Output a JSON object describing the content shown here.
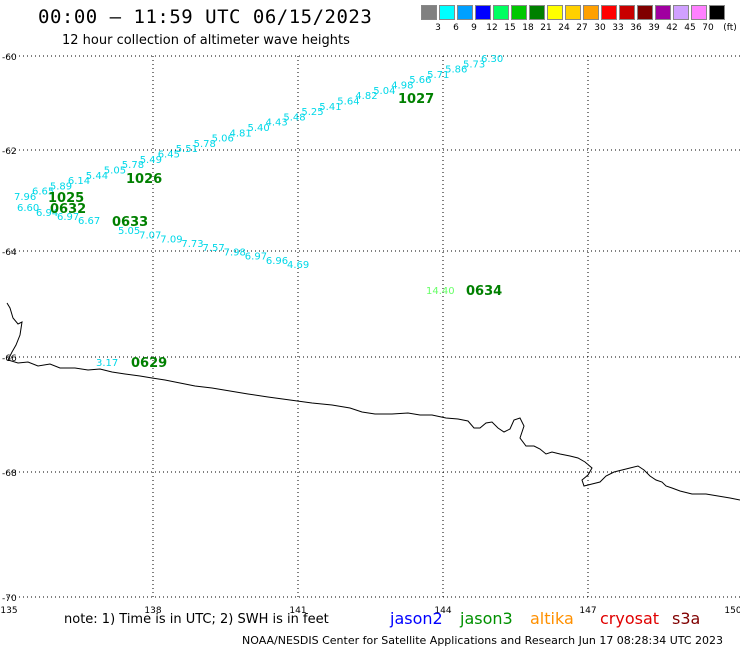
{
  "header": {
    "title": "00:00 – 11:59 UTC 06/15/2023",
    "subtitle": "12 hour collection of altimeter wave heights"
  },
  "legend": {
    "unit": "(ft)",
    "bins": [
      {
        "color": "#808080",
        "label": "3"
      },
      {
        "color": "#00ffff",
        "label": "6"
      },
      {
        "color": "#00a0ff",
        "label": "9"
      },
      {
        "color": "#0000ff",
        "label": "12"
      },
      {
        "color": "#00ff60",
        "label": "15"
      },
      {
        "color": "#00c800",
        "label": "18"
      },
      {
        "color": "#008000",
        "label": "21"
      },
      {
        "color": "#ffff00",
        "label": "24"
      },
      {
        "color": "#ffd000",
        "label": "27"
      },
      {
        "color": "#ffa000",
        "label": "30"
      },
      {
        "color": "#ff0000",
        "label": "33"
      },
      {
        "color": "#c80000",
        "label": "36"
      },
      {
        "color": "#800000",
        "label": "39"
      },
      {
        "color": "#a000a0",
        "label": "42"
      },
      {
        "color": "#d0a0ff",
        "label": "45"
      },
      {
        "color": "#ff80ff",
        "label": "70"
      },
      {
        "color": "#000000",
        "label": ""
      }
    ]
  },
  "map": {
    "lat_labels": [
      "-60",
      "-62",
      "-64",
      "-66",
      "-68",
      "-70"
    ],
    "lon_labels": [
      "135",
      "138",
      "141",
      "144",
      "147",
      "150"
    ],
    "track_color": "#00d8e8",
    "time_color": "#008000",
    "swh_tracks": [
      {
        "values": [
          "6.30",
          "5.73",
          "5.86",
          "5.71",
          "5.66",
          "4.98",
          "5.04",
          "4.82",
          "5.64",
          "5.41",
          "5.25",
          "5.48",
          "4.43",
          "5.40",
          "4.81",
          "5.06",
          "5.78",
          "5.51",
          "6.45",
          "5.49",
          "5.78",
          "5.05",
          "5.44",
          "6.14",
          "5.89",
          "6.65",
          "7.96"
        ]
      },
      {
        "values": [
          "6.60",
          "6.94",
          "6.97",
          "6.67"
        ]
      },
      {
        "values": [
          "5.05",
          "7.07",
          "7.09",
          "7.73",
          "7.57",
          "7.98",
          "6.97",
          "6.96",
          "4.69"
        ]
      },
      {
        "values": [
          "3.17"
        ]
      }
    ],
    "times": [
      "1027",
      "1026",
      "1025",
      "0632",
      "0633",
      "0634",
      "0629"
    ],
    "other_values": [
      {
        "value": "14.40",
        "color": "#66ff66"
      }
    ]
  },
  "footer": {
    "note": "note:  1) Time is in UTC;  2) SWH is in feet",
    "missions": [
      {
        "name": "jason2",
        "color": "#0000ff"
      },
      {
        "name": "jason3",
        "color": "#009000"
      },
      {
        "name": "altika",
        "color": "#ff9000"
      },
      {
        "name": "cryosat",
        "color": "#e00000"
      },
      {
        "name": "s3a",
        "color": "#800000"
      }
    ],
    "credit": "NOAA/NESDIS Center for Satellite Applications and Research     Jun 17 08:28:34 UTC 2023"
  }
}
